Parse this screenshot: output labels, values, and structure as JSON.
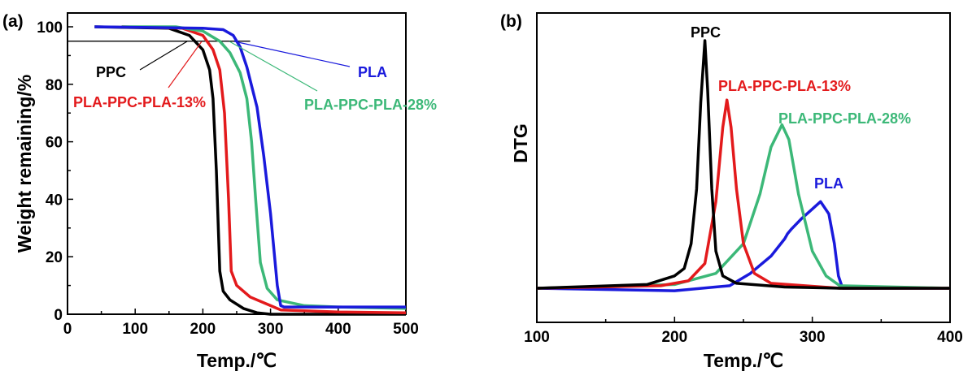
{
  "chart_data": [
    {
      "type": "line",
      "panel_label": "(a)",
      "xlabel": "Temp./℃",
      "ylabel": "Weight remaining/%",
      "xlim": [
        0,
        500
      ],
      "ylim": [
        0,
        100
      ],
      "xticks": [
        "0",
        "100",
        "200",
        "300",
        "400",
        "500"
      ],
      "yticks": [
        "0",
        "20",
        "40",
        "60",
        "80",
        "100"
      ],
      "grid": false,
      "reference_line": {
        "y": 95,
        "x": [
          0,
          270
        ]
      },
      "series": [
        {
          "name": "PPC",
          "color": "#000000",
          "points": [
            [
              40,
              100
            ],
            [
              150,
              99.5
            ],
            [
              180,
              97
            ],
            [
              200,
              92
            ],
            [
              210,
              85
            ],
            [
              215,
              75
            ],
            [
              220,
              50
            ],
            [
              225,
              15
            ],
            [
              230,
              8
            ],
            [
              240,
              5
            ],
            [
              260,
              2
            ],
            [
              280,
              0.5
            ],
            [
              300,
              0
            ],
            [
              500,
              0
            ]
          ]
        },
        {
          "name": "PLA-PPC-PLA-13%",
          "color": "#e31a1c",
          "points": [
            [
              80,
              100
            ],
            [
              170,
              99.5
            ],
            [
              200,
              97
            ],
            [
              215,
              92
            ],
            [
              225,
              85
            ],
            [
              232,
              70
            ],
            [
              238,
              40
            ],
            [
              242,
              15
            ],
            [
              250,
              10
            ],
            [
              270,
              6
            ],
            [
              300,
              3
            ],
            [
              315,
              1.5
            ],
            [
              400,
              0.8
            ],
            [
              500,
              0.5
            ]
          ]
        },
        {
          "name": "PLA-PPC-PLA-28%",
          "color": "#3cb878",
          "points": [
            [
              80,
              100
            ],
            [
              160,
              100
            ],
            [
              200,
              98.5
            ],
            [
              225,
              95
            ],
            [
              240,
              91
            ],
            [
              255,
              84
            ],
            [
              265,
              75
            ],
            [
              272,
              60
            ],
            [
              278,
              40
            ],
            [
              285,
              18
            ],
            [
              295,
              9
            ],
            [
              310,
              5
            ],
            [
              350,
              3
            ],
            [
              400,
              2.5
            ],
            [
              500,
              2
            ]
          ]
        },
        {
          "name": "PLA",
          "color": "#1a1adc",
          "points": [
            [
              40,
              100
            ],
            [
              200,
              99.5
            ],
            [
              230,
              99
            ],
            [
              245,
              97
            ],
            [
              255,
              93
            ],
            [
              265,
              86
            ],
            [
              280,
              72
            ],
            [
              290,
              55
            ],
            [
              300,
              35
            ],
            [
              310,
              10
            ],
            [
              315,
              3
            ],
            [
              320,
              2.5
            ],
            [
              500,
              2.5
            ]
          ]
        }
      ]
    },
    {
      "type": "line",
      "panel_label": "(b)",
      "xlabel": "Temp./℃",
      "ylabel": "DTG",
      "xlim": [
        100,
        400
      ],
      "y_units": "arbitrary (no tick labels)",
      "ylim": [
        -15,
        110
      ],
      "xticks": [
        "100",
        "200",
        "300",
        "400"
      ],
      "grid": false,
      "series": [
        {
          "name": "PLA",
          "color": "#1a1adc",
          "points": [
            [
              100,
              0
            ],
            [
              200,
              -1
            ],
            [
              240,
              1
            ],
            [
              255,
              6
            ],
            [
              270,
              13
            ],
            [
              280,
              20
            ],
            [
              282,
              22
            ],
            [
              285,
              24
            ],
            [
              292,
              28
            ],
            [
              300,
              32
            ],
            [
              306,
              35
            ],
            [
              312,
              30
            ],
            [
              316,
              18
            ],
            [
              319,
              5
            ],
            [
              322,
              0
            ],
            [
              400,
              0
            ]
          ]
        },
        {
          "name": "PLA-PPC-PLA-28%",
          "color": "#3cb878",
          "points": [
            [
              100,
              0
            ],
            [
              200,
              1.5
            ],
            [
              230,
              6
            ],
            [
              250,
              18
            ],
            [
              262,
              38
            ],
            [
              270,
              57
            ],
            [
              278,
              66
            ],
            [
              283,
              60
            ],
            [
              290,
              38
            ],
            [
              300,
              15
            ],
            [
              310,
              5
            ],
            [
              320,
              1
            ],
            [
              400,
              0
            ]
          ]
        },
        {
          "name": "PLA-PPC-PLA-13%",
          "color": "#e31a1c",
          "points": [
            [
              100,
              0
            ],
            [
              190,
              1
            ],
            [
              210,
              3
            ],
            [
              222,
              10
            ],
            [
              230,
              35
            ],
            [
              235,
              65
            ],
            [
              238,
              76
            ],
            [
              241,
              65
            ],
            [
              245,
              40
            ],
            [
              250,
              18
            ],
            [
              258,
              6
            ],
            [
              270,
              2
            ],
            [
              320,
              0
            ],
            [
              400,
              0
            ]
          ]
        },
        {
          "name": "PPC",
          "color": "#000000",
          "points": [
            [
              100,
              0
            ],
            [
              180,
              1.5
            ],
            [
              200,
              5
            ],
            [
              207,
              8
            ],
            [
              212,
              18
            ],
            [
              216,
              40
            ],
            [
              219,
              75
            ],
            [
              222,
              100
            ],
            [
              224,
              80
            ],
            [
              227,
              40
            ],
            [
              230,
              15
            ],
            [
              235,
              5
            ],
            [
              245,
              2
            ],
            [
              280,
              0.5
            ],
            [
              320,
              0
            ],
            [
              400,
              0
            ]
          ]
        }
      ]
    }
  ]
}
